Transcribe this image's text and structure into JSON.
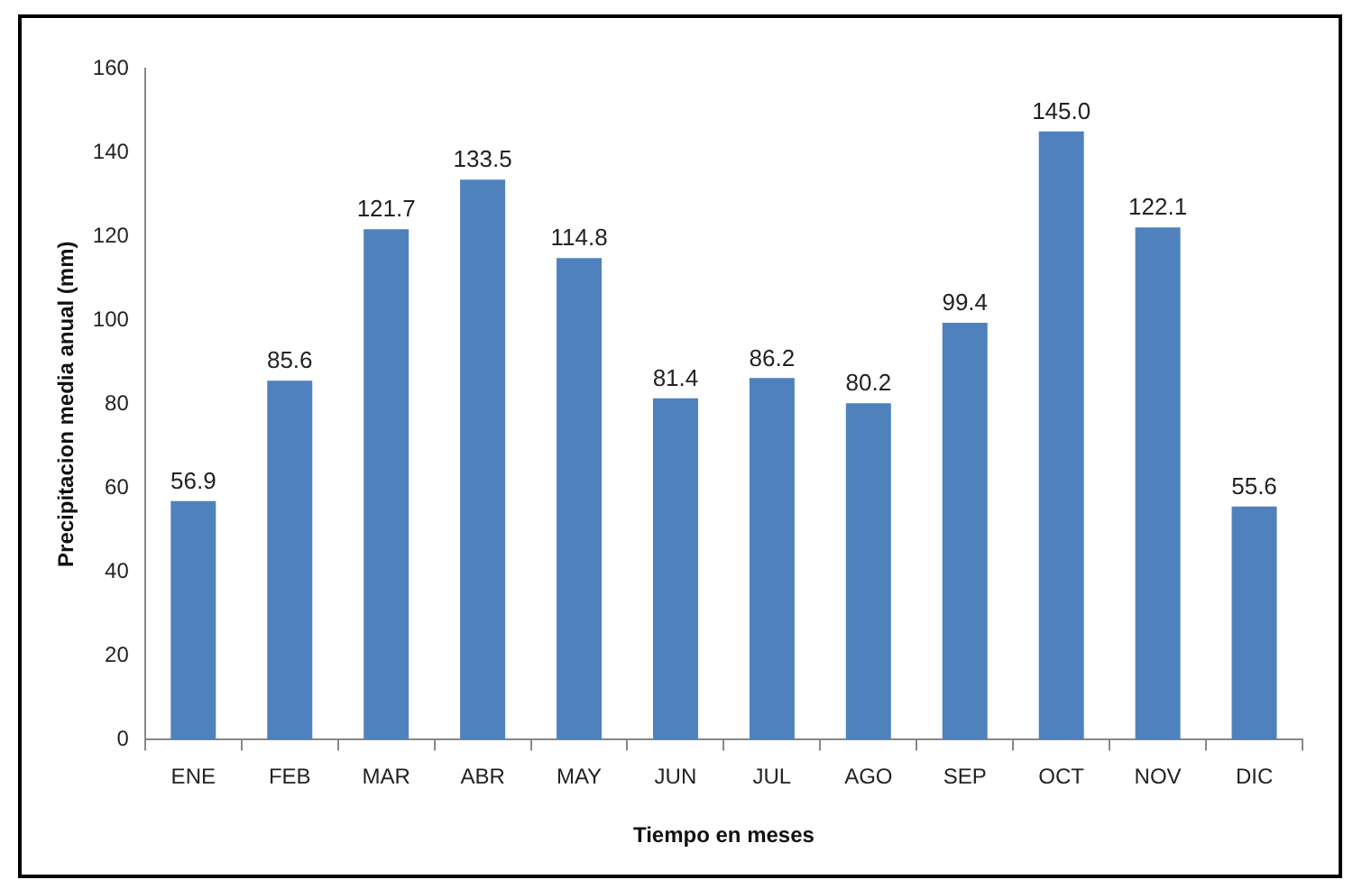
{
  "chart_data": {
    "type": "bar",
    "xlabel": "Tiempo en meses",
    "ylabel": "Precipitacion media anual (mm)",
    "categories": [
      "ENE",
      "FEB",
      "MAR",
      "ABR",
      "MAY",
      "JUN",
      "JUL",
      "AGO",
      "SEP",
      "OCT",
      "NOV",
      "DIC"
    ],
    "values": [
      56.9,
      85.6,
      121.7,
      133.5,
      114.8,
      81.4,
      86.2,
      80.2,
      99.4,
      145.0,
      122.1,
      55.6
    ],
    "value_labels": [
      "56.9",
      "85.6",
      "121.7",
      "133.5",
      "114.8",
      "81.4",
      "86.2",
      "80.2",
      "99.4",
      "145.0",
      "122.1",
      "55.6"
    ],
    "color": "#4f81bd",
    "ylim": [
      0,
      160
    ],
    "yticks": [
      0,
      20,
      40,
      60,
      80,
      100,
      120,
      140,
      160
    ],
    "grid": false,
    "legend": false
  }
}
